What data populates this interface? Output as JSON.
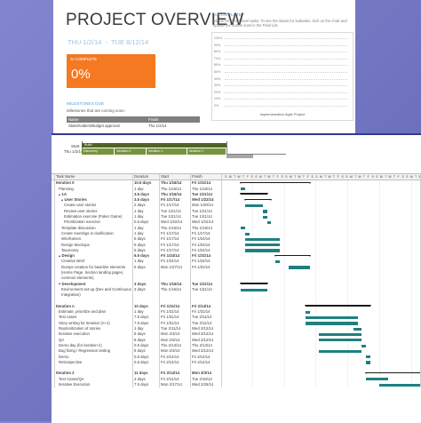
{
  "overview": {
    "title": "PROJECT OVERVIEW",
    "date_range": "THU 1/2/14  -  TUE 8/12/14",
    "complete_box": {
      "label": "% COMPLETE",
      "value": "0%"
    },
    "milestones": {
      "title": "MILESTONES DUE",
      "subtitle": "Milestones that are coming soon:",
      "columns": [
        "Name",
        "Finish"
      ],
      "rows": [
        [
          "Stakeholders/Budget approval",
          "Thu 1/2/14"
        ]
      ]
    },
    "chart": {
      "title": "% COMPLETE",
      "description": "Status for all top-level tasks. To see the status for subtasks, click on the chart and update the outline level in the Field List.",
      "yticks": [
        "100%",
        "90%",
        "80%",
        "70%",
        "60%",
        "50%",
        "40%",
        "30%",
        "20%",
        "10%",
        "0%"
      ],
      "xlabel": "Implementation Agile Project"
    }
  },
  "timeline": {
    "start_label": "Start",
    "start_date": "Thu 1/2/14",
    "phase": "Build",
    "iterations": [
      "Discovery",
      "Iteration 0",
      "Iteration 1",
      "Iteration 2"
    ]
  },
  "gantt": {
    "columns": [
      "Task Name",
      "Duration",
      "Start",
      "Finish"
    ],
    "weeks": [
      "Jan 12, '14",
      "Jan 19, '14",
      "Jan 26, '14",
      "Feb 2, '14",
      "Feb 9, '14",
      "Feb 16, '14",
      "Feb 23, '14"
    ],
    "days": [
      "S",
      "M",
      "T",
      "W",
      "T",
      "F",
      "S"
    ],
    "groups": [
      {
        "rows": [
          {
            "name": "Iteration 0",
            "duration": "10.5 days",
            "start": "Thu 1/16/14",
            "finish": "Fri 1/31/14",
            "level": 0,
            "summary": true
          },
          {
            "name": "Planning",
            "duration": "1 day",
            "start": "Thu 1/16/14",
            "finish": "Thu 1/16/14",
            "level": 1,
            "summary": false
          },
          {
            "name": "1A",
            "duration": "3.5 days",
            "start": "Thu 1/16/14",
            "finish": "Tue 1/21/14",
            "level": 1,
            "summary": true
          },
          {
            "name": "User Stories",
            "duration": "3.5 days",
            "start": "Fri 1/17/14",
            "finish": "Wed 1/22/14",
            "level": 2,
            "summary": true
          },
          {
            "name": "Create user stories",
            "duration": "2 days",
            "start": "Fri 1/17/14",
            "finish": "Mon 1/20/14",
            "level": 3,
            "summary": false
          },
          {
            "name": "Review user stories",
            "duration": "1 day",
            "start": "Tue 1/21/14",
            "finish": "Tue 1/21/14",
            "level": 3,
            "summary": false
          },
          {
            "name": "Estimation exercise (Poker Game)",
            "duration": "1 day",
            "start": "Tue 1/21/14",
            "finish": "Tue 1/21/14",
            "level": 3,
            "summary": false
          },
          {
            "name": "Prioritization exercise",
            "duration": "0.5 days",
            "start": "Wed 1/22/14",
            "finish": "Wed 1/22/14",
            "level": 3,
            "summary": false
          },
          {
            "name": "Template discussion",
            "duration": "1 day",
            "start": "Thu 1/16/14",
            "finish": "Thu 1/16/14",
            "level": 2,
            "summary": false
          },
          {
            "name": "Create meetings in clarification",
            "duration": "1 day",
            "start": "Fri 1/17/14",
            "finish": "Fri 1/17/14",
            "level": 2,
            "summary": false
          },
          {
            "name": "Wireframes",
            "duration": "5 days",
            "start": "Fri 1/17/14",
            "finish": "Fri 1/24/14",
            "level": 2,
            "summary": false
          },
          {
            "name": "Design Mockups",
            "duration": "5 days",
            "start": "Fri 1/17/14",
            "finish": "Fri 1/24/14",
            "level": 2,
            "summary": false
          },
          {
            "name": "Taxonomy",
            "duration": "5 days",
            "start": "Fri 1/17/14",
            "finish": "Fri 1/24/14",
            "level": 2,
            "summary": false
          },
          {
            "name": "Design",
            "duration": "6.5 days",
            "start": "Fri 1/24/14",
            "finish": "Fri 1/31/14",
            "level": 1,
            "summary": true
          },
          {
            "name": "Creative Brief",
            "duration": "1 day",
            "start": "Fri 1/24/14",
            "finish": "Fri 1/24/14",
            "level": 2,
            "summary": false
          },
          {
            "name": "Dumps creation for baseline elements (Home Page, Section landing pages, common elements)",
            "duration": "6 days",
            "start": "Mon 1/27/14",
            "finish": "Fri 1/31/14",
            "level": 2,
            "summary": false
          },
          {
            "name": "Development",
            "duration": "3 days",
            "start": "Thu 1/16/14",
            "finish": "Tue 1/21/14",
            "level": 1,
            "summary": true
          },
          {
            "name": "Environment set-up (Dev and Continuous Integration)",
            "duration": "3 days",
            "start": "Thu 1/16/14",
            "finish": "Tue 1/21/14",
            "level": 2,
            "summary": false
          }
        ]
      },
      {
        "rows": [
          {
            "name": "Iteration n",
            "duration": "10 days",
            "start": "Fri 1/31/14",
            "finish": "Fri 2/14/14",
            "level": 0,
            "summary": true
          },
          {
            "name": "Estimate, prioritize and plan",
            "duration": "1 day",
            "start": "Fri 1/31/14",
            "finish": "Fri 1/31/14",
            "level": 1,
            "summary": false
          },
          {
            "name": "Test cases",
            "duration": "7.5 days",
            "start": "Fri 1/31/14",
            "finish": "Tue 2/11/14",
            "level": 1,
            "summary": false
          },
          {
            "name": "Story writing for iteration (n+1)",
            "duration": "7.5 days",
            "start": "Fri 1/31/14",
            "finish": "Tue 2/11/14",
            "level": 1,
            "summary": false
          },
          {
            "name": "Reprioritization of stories",
            "duration": "1 day",
            "start": "Tue 2/11/14",
            "finish": "Wed 2/12/14",
            "level": 1,
            "summary": false
          },
          {
            "name": "Iterative execution",
            "duration": "8 days",
            "start": "Mon 2/3/14",
            "finish": "Wed 2/12/14",
            "level": 1,
            "summary": false
          },
          {
            "name": "QA",
            "duration": "8 days",
            "start": "Mon 2/3/14",
            "finish": "Wed 2/12/14",
            "level": 1,
            "summary": false
          },
          {
            "name": "Demo day (for iteration n)",
            "duration": "0.5 days",
            "start": "Thu 2/13/14",
            "finish": "Thu 2/13/14",
            "level": 1,
            "summary": false
          },
          {
            "name": "Bug fixing / Regression testing",
            "duration": "8 days",
            "start": "Mon 2/3/14",
            "finish": "Wed 2/12/14",
            "level": 1,
            "summary": false
          },
          {
            "name": "Demo",
            "duration": "0.5 days",
            "start": "Fri 2/14/14",
            "finish": "Fri 2/14/14",
            "level": 1,
            "summary": false
          },
          {
            "name": "Retrospective",
            "duration": "0.5 days",
            "start": "Fri 2/14/14",
            "finish": "Fri 2/14/14",
            "level": 1,
            "summary": false
          }
        ]
      },
      {
        "rows": [
          {
            "name": "Iteration 2",
            "duration": "11 days",
            "start": "Fri 2/14/14",
            "finish": "Mon 3/3/14",
            "level": 0,
            "summary": true
          },
          {
            "name": "Test Cases/QA",
            "duration": "2 days",
            "start": "Fri 2/14/14",
            "finish": "Tue 2/18/14",
            "level": 1,
            "summary": false
          },
          {
            "name": "Iterative Execution",
            "duration": "7.5 days",
            "start": "Mon 2/17/14",
            "finish": "Wed 2/26/14",
            "level": 1,
            "summary": false
          }
        ]
      }
    ]
  }
}
